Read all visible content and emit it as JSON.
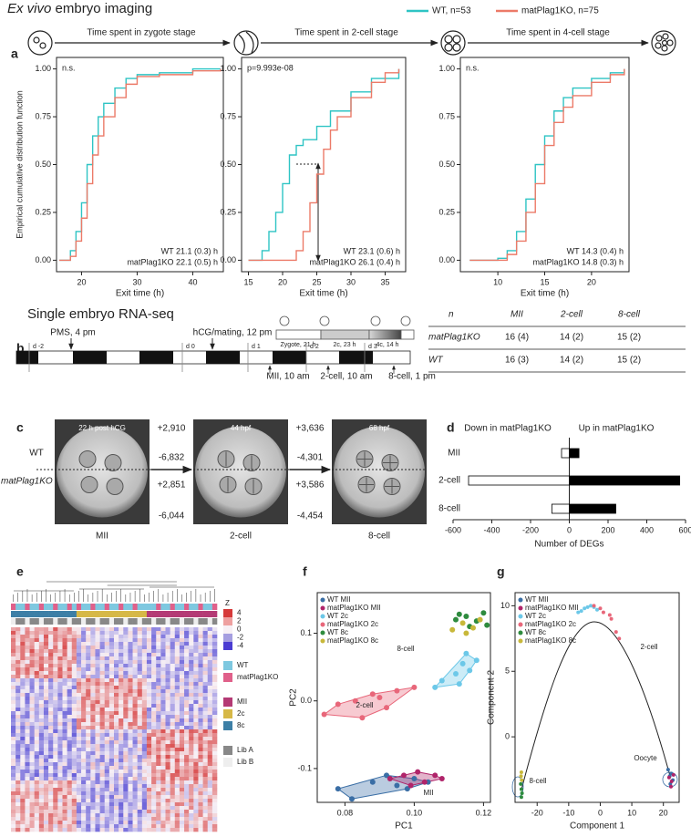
{
  "figure": {
    "panel_labels": [
      "a",
      "b",
      "c",
      "d",
      "e",
      "f",
      "g"
    ],
    "imaging_title": [
      "Ex vivo",
      "embryo imaging"
    ],
    "rnaseq_title": "Single embryo RNA-seq"
  },
  "chart_data": [
    {
      "type": "step",
      "title": "Time spent in zygote stage",
      "xlabel": "Exit time (h)",
      "ylabel": "Empirical cumulative distribution function",
      "annotations": [
        "n.s.",
        "WT 21.1 (0.3) h",
        "matPlag1KO 22.1 (0.5) h"
      ],
      "xlim": [
        15.5,
        45.5
      ],
      "ylim": [
        -0.06,
        1.06
      ],
      "xticks": [
        20,
        30,
        40
      ],
      "yticks": [
        {
          "value": 0,
          "label": "0.00"
        },
        0.25,
        {
          "value": 0.5,
          "label": "0.50"
        },
        0.75,
        {
          "value": 1,
          "label": "1.00"
        }
      ],
      "series": [
        {
          "name": "WT, n=53",
          "color": "#2ec4c4",
          "x": [
            16,
            18,
            19,
            20,
            21,
            22,
            23,
            24,
            26,
            28,
            30,
            34,
            40,
            45
          ],
          "values": [
            0,
            0.05,
            0.15,
            0.3,
            0.5,
            0.65,
            0.75,
            0.82,
            0.9,
            0.95,
            0.97,
            0.98,
            1,
            1
          ]
        },
        {
          "name": "matPlag1KO, n=75",
          "color": "#ec7a68",
          "x": [
            16,
            18,
            19,
            20,
            21,
            22,
            23,
            24,
            26,
            28,
            30,
            34,
            40,
            45
          ],
          "values": [
            0,
            0.02,
            0.1,
            0.22,
            0.4,
            0.55,
            0.65,
            0.75,
            0.85,
            0.92,
            0.96,
            0.97,
            0.99,
            1
          ]
        }
      ]
    },
    {
      "type": "step",
      "title": "Time spent in 2-cell stage",
      "xlabel": "Exit time (h)",
      "annotations": [
        "p=9.993e-08",
        "WT 23.1 (0.6) h",
        "matPlag1KO 26.1 (0.4) h"
      ],
      "xlim": [
        14,
        38
      ],
      "ylim": [
        -0.06,
        1.06
      ],
      "xticks": [
        15,
        20,
        25,
        30,
        35
      ],
      "yticks": [
        {
          "value": 0,
          "label": "0.00"
        },
        0.25,
        {
          "value": 0.5,
          "label": "0.50"
        },
        0.75,
        {
          "value": 1,
          "label": "1.00"
        }
      ],
      "series": [
        {
          "color": "#2ec4c4",
          "x": [
            15,
            17,
            18,
            19,
            20,
            21,
            22,
            23,
            25,
            27,
            30,
            33,
            37
          ],
          "values": [
            0,
            0.05,
            0.15,
            0.25,
            0.4,
            0.55,
            0.6,
            0.63,
            0.7,
            0.78,
            0.88,
            0.95,
            1
          ]
        },
        {
          "color": "#ec7a68",
          "x": [
            15,
            21,
            22,
            23,
            24,
            25,
            26,
            27,
            28,
            30,
            33,
            35,
            37
          ],
          "values": [
            0,
            0,
            0.05,
            0.15,
            0.3,
            0.45,
            0.58,
            0.68,
            0.75,
            0.85,
            0.93,
            0.98,
            1
          ]
        }
      ]
    },
    {
      "type": "step",
      "title": "Time spent in 4-cell stage",
      "xlabel": "Exit time (h)",
      "annotations": [
        "n.s.",
        "WT 14.3 (0.4) h",
        "matPlag1KO 14.8 (0.3) h"
      ],
      "xlim": [
        6,
        24
      ],
      "ylim": [
        -0.06,
        1.06
      ],
      "xticks": [
        10,
        15,
        20
      ],
      "yticks": [
        {
          "value": 0,
          "label": "0.00"
        },
        0.25,
        {
          "value": 0.5,
          "label": "0.50"
        },
        0.75,
        {
          "value": 1,
          "label": "1.00"
        }
      ],
      "series": [
        {
          "color": "#2ec4c4",
          "x": [
            7,
            10,
            11,
            12,
            13,
            14,
            15,
            16,
            17,
            18,
            20,
            22,
            23.5
          ],
          "values": [
            0,
            0.01,
            0.05,
            0.15,
            0.32,
            0.5,
            0.65,
            0.78,
            0.85,
            0.9,
            0.95,
            0.98,
            1
          ]
        },
        {
          "color": "#ec7a68",
          "x": [
            7,
            10,
            11,
            12,
            13,
            14,
            15,
            16,
            17,
            18,
            20,
            22,
            23.5
          ],
          "values": [
            0,
            0,
            0.03,
            0.1,
            0.25,
            0.4,
            0.6,
            0.72,
            0.8,
            0.86,
            0.93,
            0.97,
            1
          ]
        }
      ]
    },
    {
      "type": "bar",
      "orientation": "horizontal",
      "xlabel": "Number of DEGs",
      "categories": [
        "MII",
        "2-cell",
        "8-cell"
      ],
      "xlim": [
        -600,
        600
      ],
      "xticks": [
        -600,
        -400,
        -200,
        0,
        200,
        400,
        600
      ],
      "series": [
        {
          "name": "Down in matPlag1KO",
          "color": "#ffffff",
          "values": [
            -40,
            -520,
            -90
          ]
        },
        {
          "name": "Up in matPlag1KO",
          "color": "#000000",
          "values": [
            50,
            570,
            240
          ]
        }
      ]
    },
    {
      "type": "scatter",
      "xlabel": "PC1",
      "ylabel": "PC2",
      "annotations": [
        "8-cell",
        "2-cell",
        "MII"
      ],
      "xlim": [
        0.072,
        0.122
      ],
      "ylim": [
        -0.15,
        0.16
      ],
      "xticks": [
        0.08,
        {
          "value": 0.1,
          "label": "0.10"
        },
        0.12
      ],
      "yticks": [
        -0.1,
        {
          "value": 0,
          "label": "0.0"
        },
        0.1
      ],
      "series": [
        {
          "name": "WT MII",
          "color": "#3a6ea5",
          "outline": true,
          "x": [
            0.078,
            0.088,
            0.092,
            0.095,
            0.1,
            0.104,
            0.082,
            0.098
          ],
          "values": [
            -0.13,
            -0.12,
            -0.11,
            -0.125,
            -0.115,
            -0.12,
            -0.145,
            -0.13
          ]
        },
        {
          "name": "matPlag1KO MII",
          "color": "#b0246a",
          "outline": true,
          "x": [
            0.093,
            0.097,
            0.101,
            0.103,
            0.106,
            0.108,
            0.099
          ],
          "values": [
            -0.115,
            -0.11,
            -0.105,
            -0.12,
            -0.11,
            -0.115,
            -0.125
          ]
        },
        {
          "name": "WT 2c",
          "color": "#6cc8e8",
          "outline": true,
          "x": [
            0.108,
            0.112,
            0.114,
            0.116,
            0.118,
            0.115,
            0.113,
            0.106
          ],
          "values": [
            0.03,
            0.04,
            0.055,
            0.045,
            0.06,
            0.07,
            0.025,
            0.02
          ]
        },
        {
          "name": "matPlag1KO 2c",
          "color": "#e8677a",
          "outline": true,
          "x": [
            0.074,
            0.078,
            0.083,
            0.088,
            0.092,
            0.095,
            0.1,
            0.085,
            0.09
          ],
          "values": [
            -0.02,
            -0.005,
            0,
            0.01,
            -0.01,
            0.015,
            0.02,
            -0.025,
            0.005
          ]
        },
        {
          "name": "WT 8c",
          "color": "#2e8b3e",
          "x": [
            0.112,
            0.115,
            0.118,
            0.12,
            0.116,
            0.113,
            0.121
          ],
          "values": [
            0.12,
            0.125,
            0.118,
            0.13,
            0.11,
            0.128,
            0.112
          ]
        },
        {
          "name": "matPlag1KO 8c",
          "color": "#c8b83a",
          "x": [
            0.111,
            0.114,
            0.117,
            0.119,
            0.115
          ],
          "values": [
            0.105,
            0.115,
            0.108,
            0.12,
            0.1
          ]
        }
      ]
    },
    {
      "type": "scatter",
      "xlabel": "Component 1",
      "ylabel": "Component 2",
      "annotations": [
        "2-cell",
        "8-cell",
        "Oocyte"
      ],
      "xlim": [
        -27,
        25
      ],
      "ylim": [
        -5,
        11
      ],
      "xticks": [
        -20,
        -10,
        0,
        10,
        20
      ],
      "yticks": [
        0,
        5,
        10
      ],
      "series": [
        {
          "name": "WT MII",
          "color": "#3a6ea5",
          "x": [
            21.5,
            22,
            22.5,
            23,
            22.2
          ],
          "values": [
            -2.5,
            -3,
            -2.8,
            -3.3,
            -3.6
          ]
        },
        {
          "name": "matPlag1KO MII",
          "color": "#b0246a",
          "x": [
            21.8,
            22.6,
            23.2,
            22.4
          ],
          "values": [
            -3.1,
            -3.4,
            -2.9,
            -3.8
          ]
        },
        {
          "name": "WT 2c",
          "color": "#6cc8e8",
          "x": [
            -7,
            -6,
            -5,
            -4,
            -3,
            -2,
            -1
          ],
          "values": [
            9.5,
            9.6,
            9.8,
            9.9,
            10,
            9.9,
            9.7
          ]
        },
        {
          "name": "matPlag1KO 2c",
          "color": "#e8677a",
          "x": [
            -2,
            0,
            1,
            3,
            3.5,
            5,
            6
          ],
          "values": [
            10,
            9.8,
            9.5,
            9.3,
            9,
            8,
            7.5
          ]
        },
        {
          "name": "WT 8c",
          "color": "#2e8b3e",
          "x": [
            -25,
            -25.2,
            -24.8,
            -25
          ],
          "values": [
            -4,
            -3.6,
            -4.3,
            -4.6
          ]
        },
        {
          "name": "matPlag1KO 8c",
          "color": "#c8b83a",
          "x": [
            -25.1,
            -24.9,
            -25
          ],
          "values": [
            -3,
            -3.3,
            -2.7
          ]
        }
      ]
    }
  ],
  "timeline": {
    "stages": [
      "Zygote, 21 h",
      "2c, 23 h",
      "4c, 14 h"
    ],
    "days": [
      "d -2",
      "d 0",
      "d 1",
      "d 2",
      "d 3"
    ],
    "events": [
      "PMS, 4 pm",
      "hCG/mating, 12 pm"
    ],
    "collections": [
      "MII, 10 am",
      "2-cell, 10 am",
      "8-cell, 1 pm"
    ]
  },
  "table": {
    "header": [
      "n",
      "MII",
      "2-cell",
      "8-cell"
    ],
    "rows": [
      [
        "matPlag1KO",
        "16 (4)",
        "14 (2)",
        "15 (2)"
      ],
      [
        "WT",
        "16 (3)",
        "14 (2)",
        "15 (2)"
      ]
    ]
  },
  "imaging": {
    "rows": [
      "WT",
      "matPlag1KO"
    ],
    "image_labels": [
      "22 h post hCG",
      "44 hpf",
      "68 hpf"
    ],
    "stages": [
      "MII",
      "2-cell",
      "8-cell"
    ],
    "changes": [
      [
        "+2,910",
        "-6,832",
        "+2,851",
        "-6,044"
      ],
      [
        "+3,636",
        "-4,301",
        "+3,586",
        "-4,454"
      ]
    ]
  },
  "heatmap_legend": {
    "z_title": "Z",
    "z_labels": [
      "4",
      "2",
      "0",
      "-2",
      "-4"
    ],
    "genotype": [
      "WT",
      "matPlag1KO"
    ],
    "stage": [
      "MII",
      "2c",
      "8c"
    ],
    "library": [
      "Lib A",
      "Lib B"
    ]
  }
}
